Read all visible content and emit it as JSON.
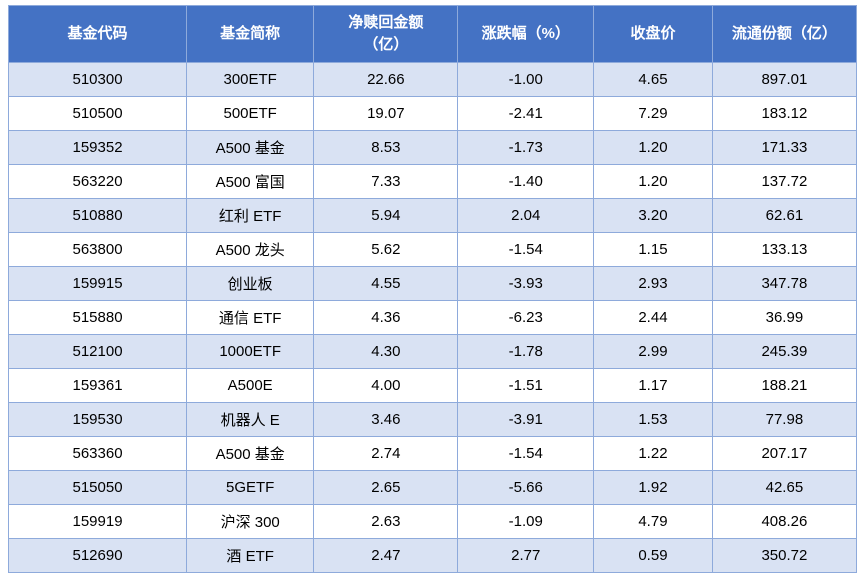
{
  "table": {
    "headers": [
      "基金代码",
      "基金简称",
      "净赎回金额\n（亿）",
      "涨跌幅（%）",
      "收盘价",
      "流通份额（亿）"
    ],
    "rows": [
      [
        "510300",
        "300ETF",
        "22.66",
        "-1.00",
        "4.65",
        "897.01"
      ],
      [
        "510500",
        "500ETF",
        "19.07",
        "-2.41",
        "7.29",
        "183.12"
      ],
      [
        "159352",
        "A500 基金",
        "8.53",
        "-1.73",
        "1.20",
        "171.33"
      ],
      [
        "563220",
        "A500 富国",
        "7.33",
        "-1.40",
        "1.20",
        "137.72"
      ],
      [
        "510880",
        "红利 ETF",
        "5.94",
        "2.04",
        "3.20",
        "62.61"
      ],
      [
        "563800",
        "A500 龙头",
        "5.62",
        "-1.54",
        "1.15",
        "133.13"
      ],
      [
        "159915",
        "创业板",
        "4.55",
        "-3.93",
        "2.93",
        "347.78"
      ],
      [
        "515880",
        "通信 ETF",
        "4.36",
        "-6.23",
        "2.44",
        "36.99"
      ],
      [
        "512100",
        "1000ETF",
        "4.30",
        "-1.78",
        "2.99",
        "245.39"
      ],
      [
        "159361",
        "A500E",
        "4.00",
        "-1.51",
        "1.17",
        "188.21"
      ],
      [
        "159530",
        "机器人 E",
        "3.46",
        "-3.91",
        "1.53",
        "77.98"
      ],
      [
        "563360",
        "A500 基金",
        "2.74",
        "-1.54",
        "1.22",
        "207.17"
      ],
      [
        "515050",
        "5GETF",
        "2.65",
        "-5.66",
        "1.92",
        "42.65"
      ],
      [
        "159919",
        "沪深 300",
        "2.63",
        "-1.09",
        "4.79",
        "408.26"
      ],
      [
        "512690",
        "酒 ETF",
        "2.47",
        "2.77",
        "0.59",
        "350.72"
      ]
    ]
  },
  "chart_data": {
    "type": "table",
    "title": "",
    "columns": [
      "基金代码",
      "基金简称",
      "净赎回金额（亿）",
      "涨跌幅（%）",
      "收盘价",
      "流通份额（亿）"
    ],
    "rows": [
      {
        "基金代码": "510300",
        "基金简称": "300ETF",
        "净赎回金额（亿）": 22.66,
        "涨跌幅（%）": -1.0,
        "收盘价": 4.65,
        "流通份额（亿）": 897.01
      },
      {
        "基金代码": "510500",
        "基金简称": "500ETF",
        "净赎回金额（亿）": 19.07,
        "涨跌幅（%）": -2.41,
        "收盘价": 7.29,
        "流通份额（亿）": 183.12
      },
      {
        "基金代码": "159352",
        "基金简称": "A500 基金",
        "净赎回金额（亿）": 8.53,
        "涨跌幅（%）": -1.73,
        "收盘价": 1.2,
        "流通份额（亿）": 171.33
      },
      {
        "基金代码": "563220",
        "基金简称": "A500 富国",
        "净赎回金额（亿）": 7.33,
        "涨跌幅（%）": -1.4,
        "收盘价": 1.2,
        "流通份额（亿）": 137.72
      },
      {
        "基金代码": "510880",
        "基金简称": "红利 ETF",
        "净赎回金额（亿）": 5.94,
        "涨跌幅（%）": 2.04,
        "收盘价": 3.2,
        "流通份额（亿）": 62.61
      },
      {
        "基金代码": "563800",
        "基金简称": "A500 龙头",
        "净赎回金额（亿）": 5.62,
        "涨跌幅（%）": -1.54,
        "收盘价": 1.15,
        "流通份额（亿）": 133.13
      },
      {
        "基金代码": "159915",
        "基金简称": "创业板",
        "净赎回金额（亿）": 4.55,
        "涨跌幅（%）": -3.93,
        "收盘价": 2.93,
        "流通份额（亿）": 347.78
      },
      {
        "基金代码": "515880",
        "基金简称": "通信 ETF",
        "净赎回金额（亿）": 4.36,
        "涨跌幅（%）": -6.23,
        "收盘价": 2.44,
        "流通份额（亿）": 36.99
      },
      {
        "基金代码": "512100",
        "基金简称": "1000ETF",
        "净赎回金额（亿）": 4.3,
        "涨跌幅（%）": -1.78,
        "收盘价": 2.99,
        "流通份额（亿）": 245.39
      },
      {
        "基金代码": "159361",
        "基金简称": "A500E",
        "净赎回金额（亿）": 4.0,
        "涨跌幅（%）": -1.51,
        "收盘价": 1.17,
        "流通份额（亿）": 188.21
      },
      {
        "基金代码": "159530",
        "基金简称": "机器人 E",
        "净赎回金额（亿）": 3.46,
        "涨跌幅（%）": -3.91,
        "收盘价": 1.53,
        "流通份额（亿）": 77.98
      },
      {
        "基金代码": "563360",
        "基金简称": "A500 基金",
        "净赎回金额（亿）": 2.74,
        "涨跌幅（%）": -1.54,
        "收盘价": 1.22,
        "流通份额（亿）": 207.17
      },
      {
        "基金代码": "515050",
        "基金简称": "5GETF",
        "净赎回金额（亿）": 2.65,
        "涨跌幅（%）": -5.66,
        "收盘价": 1.92,
        "流通份额（亿）": 42.65
      },
      {
        "基金代码": "159919",
        "基金简称": "沪深 300",
        "净赎回金额（亿）": 2.63,
        "涨跌幅（%）": -1.09,
        "收盘价": 4.79,
        "流通份额（亿）": 408.26
      },
      {
        "基金代码": "512690",
        "基金简称": "酒 ETF",
        "净赎回金额（亿）": 2.47,
        "涨跌幅（%）": 2.77,
        "收盘价": 0.59,
        "流通份额（亿）": 350.72
      }
    ]
  },
  "colors": {
    "header_bg": "#4472C4",
    "header_text": "#FFFFFF",
    "stripe_bg": "#D9E2F3",
    "row_bg": "#FFFFFF",
    "border": "#8EAADB",
    "text": "#000000"
  }
}
